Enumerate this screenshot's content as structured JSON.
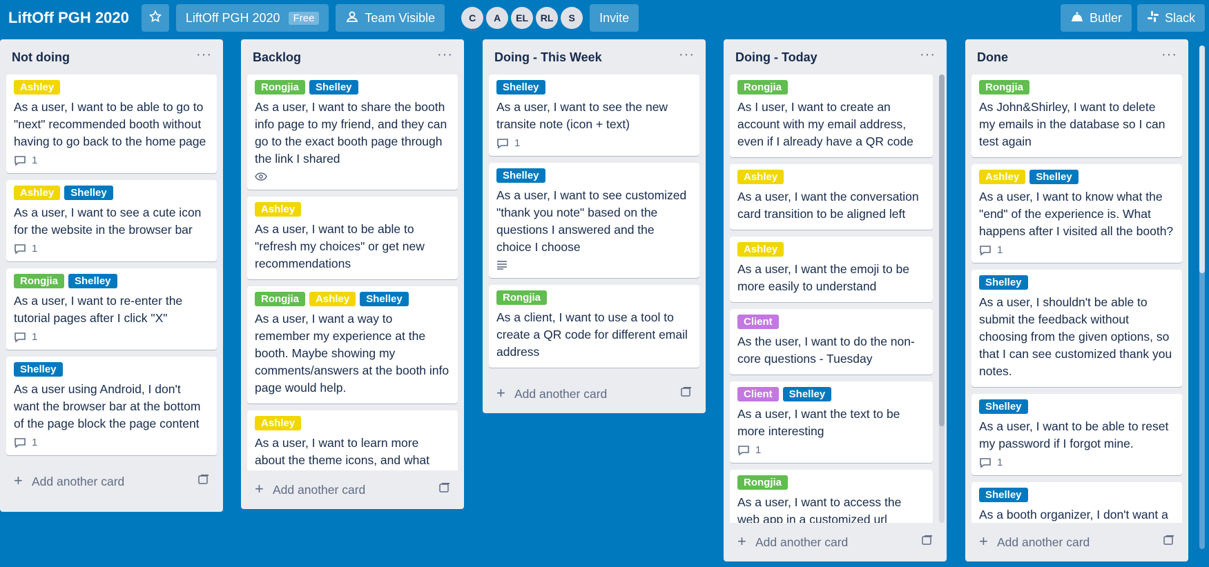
{
  "header": {
    "board_title": "LiftOff PGH 2020",
    "workspace_name": "LiftOff PGH 2020",
    "workspace_plan": "Free",
    "visibility": "Team Visible",
    "members": [
      "C",
      "A",
      "EL",
      "RL",
      "S"
    ],
    "invite": "Invite",
    "butler": "Butler",
    "slack": "Slack"
  },
  "lists": [
    {
      "title": "Not doing",
      "cards": [
        {
          "labels": [
            {
              "text": "Ashley",
              "color": "yellow"
            }
          ],
          "text": "As a user, I want to be able to go to \"next\" recommended booth without having to go back to the home page",
          "comments": "1"
        },
        {
          "labels": [
            {
              "text": "Ashley",
              "color": "yellow"
            },
            {
              "text": "Shelley",
              "color": "blue"
            }
          ],
          "text": "As a user, I want to see a cute icon for the website in the browser bar",
          "comments": "1"
        },
        {
          "labels": [
            {
              "text": "Rongjia",
              "color": "green"
            },
            {
              "text": "Shelley",
              "color": "blue"
            }
          ],
          "text": "As a user, I want to re-enter the tutorial pages after I click \"X\"",
          "comments": "1"
        },
        {
          "labels": [
            {
              "text": "Shelley",
              "color": "blue"
            }
          ],
          "text": "As a user using Android, I don't want the browser bar at the bottom of the page block the page content",
          "comments": "1"
        }
      ],
      "add_label": "Add another card"
    },
    {
      "title": "Backlog",
      "cards": [
        {
          "labels": [
            {
              "text": "Rongjia",
              "color": "green"
            },
            {
              "text": "Shelley",
              "color": "blue"
            }
          ],
          "text": "As a user, I want to share the booth info page to my friend, and they can go to the exact booth page through the link I shared",
          "watch": true
        },
        {
          "labels": [
            {
              "text": "Ashley",
              "color": "yellow"
            }
          ],
          "text": "As a user, I want to be able to \"refresh my choices\" or get new recommendations"
        },
        {
          "labels": [
            {
              "text": "Rongjia",
              "color": "green"
            },
            {
              "text": "Ashley",
              "color": "yellow"
            },
            {
              "text": "Shelley",
              "color": "blue"
            }
          ],
          "text": "As a user, I want a way to remember my experience at the booth. Maybe showing my comments/answers at the booth info page would help."
        },
        {
          "labels": [
            {
              "text": "Ashley",
              "color": "yellow"
            }
          ],
          "text": "As a user, I want to learn more about the theme icons, and what does it have to do with the planets"
        }
      ],
      "add_label": "Add another card"
    },
    {
      "title": "Doing - This Week",
      "cards": [
        {
          "labels": [
            {
              "text": "Shelley",
              "color": "blue"
            }
          ],
          "text": "As a user, I want to see the new transite note (icon + text)",
          "comments": "1"
        },
        {
          "labels": [
            {
              "text": "Shelley",
              "color": "blue"
            }
          ],
          "text": "As a user, I want to see customized \"thank you note\" based on the questions I answered and the choice I choose",
          "description": true
        },
        {
          "labels": [
            {
              "text": "Rongjia",
              "color": "green"
            }
          ],
          "text": "As a client, I want to use a tool to create a QR code for different email address"
        }
      ],
      "add_label": "Add another card"
    },
    {
      "title": "Doing - Today",
      "cards": [
        {
          "labels": [
            {
              "text": "Rongjia",
              "color": "green"
            }
          ],
          "text": "As I user, I want to create an account with my email address, even if I already have a QR code"
        },
        {
          "labels": [
            {
              "text": "Ashley",
              "color": "yellow"
            }
          ],
          "text": "As a user, I want the conversation card transition to be aligned left"
        },
        {
          "labels": [
            {
              "text": "Ashley",
              "color": "yellow"
            }
          ],
          "text": "As a user, I want the emoji to be more easily to understand"
        },
        {
          "labels": [
            {
              "text": "Client",
              "color": "purple"
            }
          ],
          "text": "As the user, I want to do the non-core questions - Tuesday"
        },
        {
          "labels": [
            {
              "text": "Client",
              "color": "purple"
            },
            {
              "text": "Shelley",
              "color": "blue"
            }
          ],
          "text": "As a user, I want the text to be more interesting",
          "comments": "1"
        },
        {
          "labels": [
            {
              "text": "Rongjia",
              "color": "green"
            }
          ],
          "text": "As a user, I want to access the web app in a customized url"
        }
      ],
      "add_label": "Add another card"
    },
    {
      "title": "Done",
      "cards": [
        {
          "labels": [
            {
              "text": "Rongjia",
              "color": "green"
            }
          ],
          "text": "As John&Shirley, I want to delete my emails in the database so I can test again"
        },
        {
          "labels": [
            {
              "text": "Ashley",
              "color": "yellow"
            },
            {
              "text": "Shelley",
              "color": "blue"
            }
          ],
          "text": "As a user, I want to know what the \"end\" of the experience is. What happens after I visited all the booth?",
          "comments": "1"
        },
        {
          "labels": [
            {
              "text": "Shelley",
              "color": "blue"
            }
          ],
          "text": "As a user, I shouldn't be able to submit the feedback without choosing from the given options, so that I can see customized thank you notes."
        },
        {
          "labels": [
            {
              "text": "Shelley",
              "color": "blue"
            }
          ],
          "text": "As a user, I want to be able to reset my password if I forgot mine.",
          "comments": "1"
        },
        {
          "labels": [
            {
              "text": "Shelley",
              "color": "blue"
            }
          ],
          "text": "As a booth organizer, I don't want a message of feedback given by..."
        }
      ],
      "add_label": "Add another card"
    }
  ]
}
